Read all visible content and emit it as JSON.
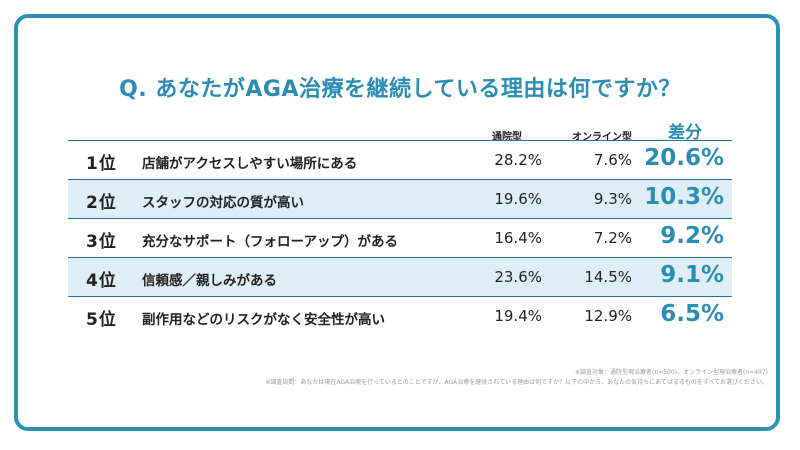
{
  "title": "Q. あなたがAGA治療を継続している理由は何ですか？",
  "headers": {
    "clinic": "通院型",
    "online": "オンライン型",
    "diff": "差分"
  },
  "rows": [
    {
      "rank": "1位",
      "reason": "店舗がアクセスしやすい場所にある",
      "clinic": "28.2%",
      "online": "7.6%",
      "diff": "20.6%"
    },
    {
      "rank": "2位",
      "reason": "スタッフの対応の質が高い",
      "clinic": "19.6%",
      "online": "9.3%",
      "diff": "10.3%"
    },
    {
      "rank": "3位",
      "reason": "充分なサポート（フォローアップ）がある",
      "clinic": "16.4%",
      "online": "7.2%",
      "diff": "9.2%"
    },
    {
      "rank": "4位",
      "reason": "信頼感／親しみがある",
      "clinic": "23.6%",
      "online": "14.5%",
      "diff": "9.1%"
    },
    {
      "rank": "5位",
      "reason": "副作用などのリスクがなく安全性が高い",
      "clinic": "19.4%",
      "online": "12.9%",
      "diff": "6.5%"
    }
  ],
  "notes": {
    "target": "※調査対象：通院型現治療者(n=500)、オンライン型現治療者(n=497)",
    "question": "※調査設問：あなたは現在AGA治療を行っているとのことですが、AGA治療を継続されている理由は何ですか？以下の中から、あなたの気持ちにあてはまるものをすべてお選びください。"
  },
  "chart_data": {
    "type": "table",
    "title": "Q. あなたがAGA治療を継続している理由は何ですか？",
    "columns": [
      "通院型",
      "オンライン型",
      "差分"
    ],
    "categories": [
      "店舗がアクセスしやすい場所にある",
      "スタッフの対応の質が高い",
      "充分なサポート（フォローアップ）がある",
      "信頼感／親しみがある",
      "副作用などのリスクがなく安全性が高い"
    ],
    "series": [
      {
        "name": "通院型",
        "values": [
          28.2,
          19.6,
          16.4,
          23.6,
          19.4
        ]
      },
      {
        "name": "オンライン型",
        "values": [
          7.6,
          9.3,
          7.2,
          14.5,
          12.9
        ]
      },
      {
        "name": "差分",
        "values": [
          20.6,
          10.3,
          9.2,
          9.1,
          6.5
        ]
      }
    ],
    "colors": {
      "accent": "#2b8db3",
      "frame": "#2b92b6",
      "alt_row": "#dfeef6",
      "text": "#222222"
    }
  }
}
